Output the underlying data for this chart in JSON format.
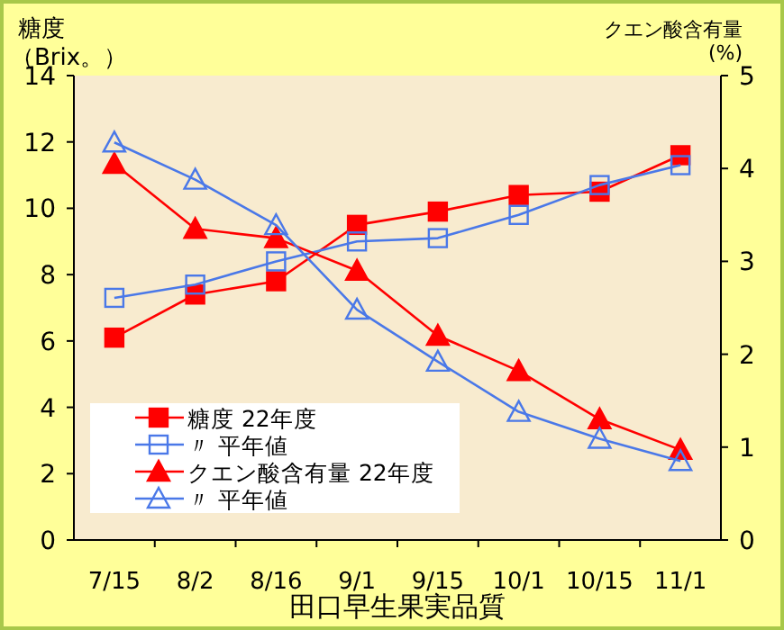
{
  "chart_data": {
    "type": "line",
    "xlabel": "田口早生果実品質",
    "ylabel": "糖度",
    "y2label": "クエン酸含有量",
    "annotations": [
      "（Brix。）",
      "(%)"
    ],
    "categories": [
      "7/15",
      "8/2",
      "8/16",
      "9/1",
      "9/15",
      "10/1",
      "10/15",
      "11/1"
    ],
    "ylim": [
      0,
      14
    ],
    "yticks": [
      0,
      2,
      4,
      6,
      8,
      10,
      12,
      14
    ],
    "y2lim": [
      0,
      5
    ],
    "y2ticks": [
      0,
      1,
      2,
      3,
      4,
      5
    ],
    "grid": false,
    "legend": "bottom left",
    "line_style": "solid",
    "series": [
      {
        "name": "糖度 22年度",
        "color": "#ff0000",
        "marker": "square",
        "values": [
          6.1,
          7.4,
          7.8,
          9.5,
          9.9,
          10.4,
          10.5,
          11.6
        ]
      },
      {
        "name": "〃 平年値",
        "color": "#4a78e8",
        "marker": "square",
        "values": [
          7.3,
          7.7,
          8.4,
          9.0,
          9.1,
          9.8,
          10.7,
          11.3
        ]
      },
      {
        "name": "クエン酸含有量 22年度",
        "color": "#ff0000",
        "marker": "triangle",
        "axis": "y2",
        "values": [
          4.05,
          3.35,
          3.25,
          2.9,
          2.2,
          1.82,
          1.3,
          0.97
        ]
      },
      {
        "name": "〃 平年値",
        "color": "#4a78e8",
        "marker": "triangle",
        "axis": "y2",
        "values": [
          4.28,
          3.88,
          3.39,
          2.48,
          1.92,
          1.38,
          1.09,
          0.85
        ]
      }
    ]
  }
}
